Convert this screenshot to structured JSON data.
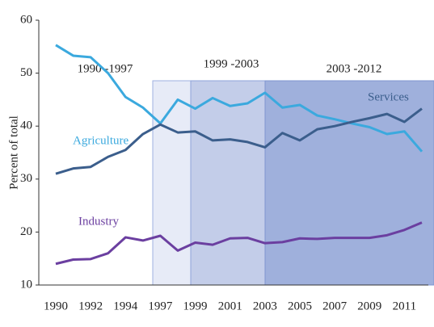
{
  "chart_data": {
    "type": "line",
    "y_label": "Percent of total",
    "categories": [
      "1990",
      null,
      "1992",
      null,
      "1994",
      null,
      "1997",
      null,
      "1999",
      null,
      "2001",
      null,
      "2003",
      null,
      "2005",
      null,
      "2007",
      null,
      "2009",
      null,
      "2011",
      null
    ],
    "series": [
      {
        "name": "Agriculture",
        "color": "#3ba9de",
        "values": [
          55.3,
          53.3,
          53,
          50,
          45.5,
          43.5,
          40.5,
          45,
          43.3,
          45.3,
          43.8,
          44.3,
          46.3,
          43.5,
          44,
          42,
          41.3,
          40.5,
          39.8,
          38.5,
          39,
          35.2
        ]
      },
      {
        "name": "Services",
        "color": "#3b5e8c",
        "values": [
          31,
          32,
          32.3,
          34.2,
          35.5,
          38.5,
          40.3,
          38.8,
          39,
          37.3,
          37.5,
          37,
          36,
          38.7,
          37.3,
          39.4,
          40,
          40.8,
          41.5,
          42.3,
          40.8,
          43.3
        ]
      },
      {
        "name": "Industry",
        "color": "#6b3fa0",
        "values": [
          14,
          14.8,
          14.9,
          16,
          19,
          18.4,
          19.3,
          16.5,
          18,
          17.6,
          18.8,
          18.9,
          17.9,
          18.1,
          18.8,
          18.7,
          18.9,
          18.9,
          18.9,
          19.4,
          20.4,
          21.8
        ]
      }
    ],
    "annotations": [
      "1990 -1997",
      "1999 -2003",
      "2003 -2012"
    ],
    "ylim": [
      10,
      60
    ],
    "yticks": [
      10,
      20,
      30,
      40,
      50,
      60
    ]
  }
}
